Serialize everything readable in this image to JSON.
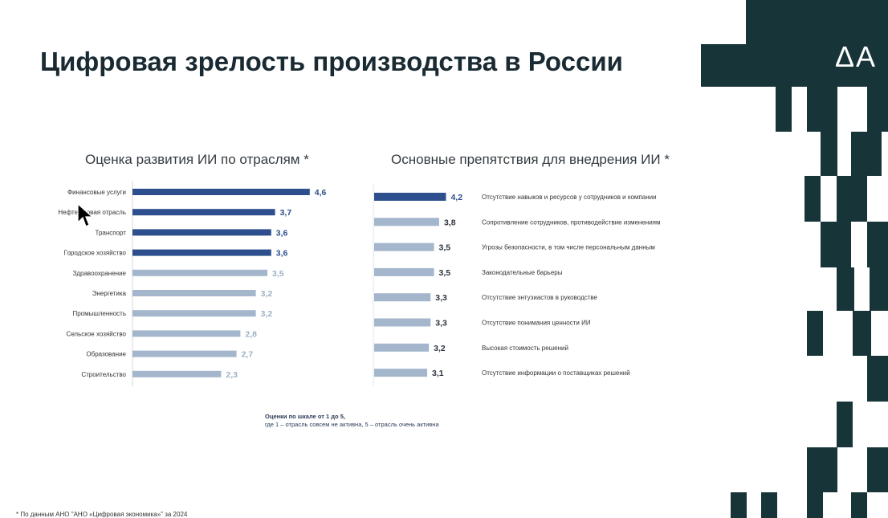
{
  "title": "Цифровая зрелость производства в России",
  "logo_text": "ΔΑ",
  "chart_data": [
    {
      "type": "bar",
      "orientation": "horizontal",
      "title": "Оценка развития ИИ по отраслям  *",
      "categories": [
        "Финансовые услуги",
        "Нефтегазовая отрасль",
        "Транспорт",
        "Городское хозяйство",
        "Здравоохранение",
        "Энергетика",
        "Промышленность",
        "Сельское хозяйство",
        "Образование",
        "Строительство"
      ],
      "values": [
        4.6,
        3.7,
        3.6,
        3.6,
        3.5,
        3.2,
        3.2,
        2.8,
        2.7,
        2.3
      ],
      "value_labels": [
        "4,6",
        "3,7",
        "3,6",
        "3,6",
        "3,5",
        "3,2",
        "3,2",
        "2,8",
        "2,7",
        "2,3"
      ],
      "highlighted": [
        true,
        true,
        true,
        true,
        false,
        false,
        false,
        false,
        false,
        false
      ],
      "xlim": [
        0,
        5
      ]
    },
    {
      "type": "bar",
      "orientation": "horizontal",
      "title": "Основные препятствия для внедрения ИИ  *",
      "categories": [
        "Отсутствие навыков и ресурсов у сотрудников и компании",
        "Сопротивление сотрудников, противодействие изменениям",
        "Угрозы безопасности, в том числе персональным данным",
        "Законодательные барьеры",
        "Отсутствие энтузиастов в руководстве",
        "Отсутствие понимания ценности ИИ",
        "Высокая стоимость решений",
        "Отсутствие информации о поставщиках решений"
      ],
      "values": [
        4.2,
        3.8,
        3.5,
        3.5,
        3.3,
        3.3,
        3.2,
        3.1
      ],
      "value_labels": [
        "4,2",
        "3,8",
        "3,5",
        "3,5",
        "3,3",
        "3,3",
        "3,2",
        "3,1"
      ],
      "highlighted": [
        true,
        false,
        false,
        false,
        false,
        false,
        false,
        false
      ],
      "xlim": [
        0,
        5
      ]
    }
  ],
  "scale_note": {
    "line1": "Оценки по шкале от 1 до 5,",
    "line2": "где 1 – отрасль совсем не активна, 5 – отрасль очень активна"
  },
  "footnote": "* По данным АНО \"АНО «Цифровая экономика»\" за 2024",
  "colors": {
    "dark_bar": "#2d4f8e",
    "light_bar": "#a3b6cc",
    "dark_label": "#2d4f8e",
    "light_label": "#9db0c6",
    "brand": "#173539"
  }
}
